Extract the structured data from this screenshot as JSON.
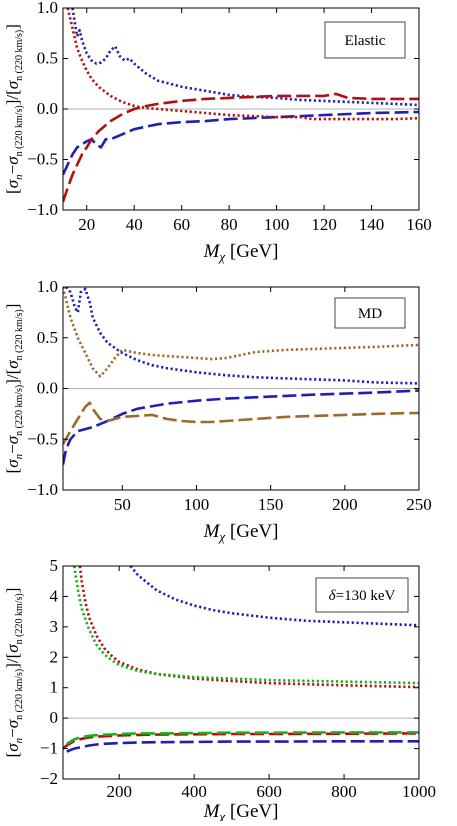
{
  "chart_data": [
    {
      "type": "line",
      "legend_label": "Elastic",
      "legend_position": "top-right",
      "xlabel": "M_χ [GeV]",
      "ylabel": "[σn−σn(220 km/s)]/[σn(220 km/s)]",
      "xlim": [
        10,
        160
      ],
      "ylim": [
        -1.0,
        1.0
      ],
      "xticks": [
        20,
        40,
        60,
        80,
        100,
        120,
        140,
        160
      ],
      "yticks": [
        -1.0,
        -0.5,
        0.0,
        0.5,
        1.0
      ],
      "ytick_labels": [
        "−1.0",
        "−0.5",
        "0.0",
        "0.5",
        "1.0"
      ],
      "zero_line": true,
      "series": [
        {
          "color": "#1f1fb4",
          "style": "dotted",
          "x": [
            14,
            15,
            16,
            17,
            18,
            20,
            22,
            24,
            26,
            28,
            30,
            32,
            34,
            36,
            38,
            40,
            45,
            50,
            60,
            70,
            80,
            90,
            100,
            110,
            120,
            130,
            140,
            150,
            160
          ],
          "y": [
            1.0,
            0.85,
            0.72,
            0.78,
            0.68,
            0.55,
            0.48,
            0.45,
            0.46,
            0.5,
            0.58,
            0.62,
            0.52,
            0.48,
            0.5,
            0.45,
            0.35,
            0.28,
            0.22,
            0.18,
            0.14,
            0.12,
            0.11,
            0.09,
            0.08,
            0.07,
            0.06,
            0.05,
            0.04
          ]
        },
        {
          "color": "#1f1fb4",
          "style": "dashed",
          "x": [
            10,
            12,
            14,
            16,
            18,
            20,
            22,
            24,
            26,
            28,
            30,
            35,
            40,
            50,
            60,
            70,
            80,
            100,
            120,
            140,
            160
          ],
          "y": [
            -0.65,
            -0.55,
            -0.45,
            -0.38,
            -0.35,
            -0.32,
            -0.3,
            -0.35,
            -0.38,
            -0.3,
            -0.3,
            -0.25,
            -0.2,
            -0.15,
            -0.13,
            -0.12,
            -0.1,
            -0.08,
            -0.06,
            -0.04,
            -0.03
          ]
        },
        {
          "color": "#b01010",
          "style": "dotted",
          "x": [
            12,
            14,
            16,
            18,
            20,
            22,
            25,
            30,
            35,
            40,
            45,
            50,
            60,
            70,
            80,
            90,
            100,
            110,
            115,
            120,
            130,
            140,
            150,
            160
          ],
          "y": [
            1.0,
            0.8,
            0.6,
            0.48,
            0.38,
            0.3,
            0.22,
            0.13,
            0.07,
            0.03,
            0.01,
            0.0,
            -0.02,
            -0.04,
            -0.06,
            -0.07,
            -0.08,
            -0.08,
            -0.1,
            -0.1,
            -0.1,
            -0.1,
            -0.1,
            -0.09
          ]
        },
        {
          "color": "#b01010",
          "style": "dashed",
          "x": [
            10,
            12,
            14,
            16,
            18,
            20,
            22,
            25,
            30,
            35,
            40,
            45,
            50,
            60,
            70,
            80,
            90,
            100,
            110,
            120,
            125,
            130,
            140,
            150,
            160
          ],
          "y": [
            -0.92,
            -0.78,
            -0.65,
            -0.55,
            -0.45,
            -0.38,
            -0.3,
            -0.22,
            -0.12,
            -0.05,
            0.0,
            0.03,
            0.05,
            0.08,
            0.1,
            0.11,
            0.12,
            0.13,
            0.13,
            0.13,
            0.15,
            0.11,
            0.1,
            0.1,
            0.1
          ]
        }
      ]
    },
    {
      "type": "line",
      "legend_label": "MD",
      "legend_position": "top-right",
      "xlabel": "M_χ [GeV]",
      "ylabel": "[σn−σn(220 km/s)]/[σn(220 km/s)]",
      "xlim": [
        10,
        250
      ],
      "ylim": [
        -1.0,
        1.0
      ],
      "xticks": [
        50,
        100,
        150,
        200,
        250
      ],
      "yticks": [
        -1.0,
        -0.5,
        0.0,
        0.5,
        1.0
      ],
      "ytick_labels": [
        "−1.0",
        "−0.5",
        "0.0",
        "0.5",
        "1.0"
      ],
      "zero_line": true,
      "series": [
        {
          "color": "#1f1fb4",
          "style": "dotted",
          "x": [
            12,
            15,
            18,
            20,
            22,
            25,
            28,
            30,
            35,
            40,
            50,
            60,
            70,
            80,
            100,
            120,
            140,
            160,
            180,
            200,
            220,
            250
          ],
          "y": [
            1.0,
            0.95,
            0.8,
            0.75,
            0.95,
            0.98,
            0.85,
            0.7,
            0.55,
            0.45,
            0.35,
            0.28,
            0.23,
            0.2,
            0.16,
            0.13,
            0.11,
            0.1,
            0.09,
            0.08,
            0.06,
            0.05
          ]
        },
        {
          "color": "#1f1fb4",
          "style": "dashed",
          "x": [
            10,
            12,
            15,
            18,
            20,
            25,
            30,
            40,
            50,
            60,
            80,
            100,
            120,
            150,
            180,
            200,
            220,
            250
          ],
          "y": [
            -0.75,
            -0.6,
            -0.5,
            -0.45,
            -0.42,
            -0.4,
            -0.38,
            -0.32,
            -0.25,
            -0.2,
            -0.15,
            -0.12,
            -0.1,
            -0.08,
            -0.06,
            -0.05,
            -0.04,
            -0.02
          ]
        },
        {
          "color": "#9c6a2e",
          "style": "dotted",
          "x": [
            10,
            15,
            20,
            25,
            30,
            35,
            40,
            45,
            50,
            60,
            70,
            80,
            90,
            100,
            110,
            120,
            130,
            140,
            160,
            180,
            200,
            220,
            250
          ],
          "y": [
            1.0,
            0.7,
            0.5,
            0.35,
            0.2,
            0.12,
            0.2,
            0.3,
            0.38,
            0.35,
            0.33,
            0.32,
            0.31,
            0.3,
            0.29,
            0.3,
            0.33,
            0.36,
            0.38,
            0.39,
            0.4,
            0.41,
            0.43
          ]
        },
        {
          "color": "#9c6a2e",
          "style": "dashed",
          "x": [
            10,
            15,
            20,
            25,
            28,
            30,
            35,
            40,
            50,
            60,
            70,
            80,
            90,
            100,
            110,
            120,
            140,
            160,
            180,
            200,
            220,
            250
          ],
          "y": [
            -0.55,
            -0.42,
            -0.3,
            -0.18,
            -0.14,
            -0.2,
            -0.3,
            -0.32,
            -0.28,
            -0.27,
            -0.26,
            -0.3,
            -0.32,
            -0.33,
            -0.33,
            -0.32,
            -0.3,
            -0.28,
            -0.27,
            -0.26,
            -0.25,
            -0.24
          ]
        }
      ]
    },
    {
      "type": "line",
      "legend_label": "δ=130 keV",
      "legend_position": "top-right",
      "xlabel": "M_χ [GeV]",
      "ylabel": "[σn−σn(220 km/s)]/[σn(220 km/s)]",
      "xlim": [
        50,
        1000
      ],
      "ylim": [
        -2,
        5
      ],
      "xticks": [
        200,
        400,
        600,
        800,
        1000
      ],
      "yticks": [
        -2,
        -1,
        0,
        1,
        2,
        3,
        4,
        5
      ],
      "ytick_labels": [
        "−2",
        "−1",
        "0",
        "1",
        "2",
        "3",
        "4",
        "5"
      ],
      "zero_line": true,
      "series": [
        {
          "color": "#1f1fb4",
          "style": "dotted",
          "x": [
            230,
            250,
            280,
            300,
            350,
            400,
            450,
            500,
            600,
            700,
            800,
            900,
            1000
          ],
          "y": [
            5.0,
            4.7,
            4.4,
            4.2,
            3.9,
            3.7,
            3.55,
            3.45,
            3.3,
            3.2,
            3.15,
            3.1,
            3.05
          ]
        },
        {
          "color": "#1f1fb4",
          "style": "dashed",
          "x": [
            60,
            80,
            100,
            120,
            150,
            200,
            250,
            300,
            400,
            500,
            600,
            800,
            1000
          ],
          "y": [
            -1.1,
            -1.0,
            -0.95,
            -0.9,
            -0.85,
            -0.82,
            -0.8,
            -0.79,
            -0.78,
            -0.77,
            -0.77,
            -0.76,
            -0.76
          ]
        },
        {
          "color": "#b01010",
          "style": "dotted",
          "x": [
            95,
            100,
            110,
            120,
            140,
            160,
            180,
            200,
            250,
            300,
            400,
            500,
            600,
            800,
            1000
          ],
          "y": [
            5.0,
            4.5,
            3.8,
            3.3,
            2.7,
            2.3,
            2.05,
            1.85,
            1.6,
            1.45,
            1.3,
            1.22,
            1.15,
            1.08,
            1.02
          ]
        },
        {
          "color": "#18b018",
          "style": "dotted",
          "x": [
            80,
            90,
            100,
            120,
            140,
            160,
            180,
            200,
            250,
            300,
            400,
            500,
            600,
            800,
            1000
          ],
          "y": [
            5.0,
            4.2,
            3.6,
            2.9,
            2.4,
            2.1,
            1.9,
            1.75,
            1.55,
            1.45,
            1.35,
            1.3,
            1.25,
            1.2,
            1.15
          ]
        },
        {
          "color": "#b01010",
          "style": "dashed",
          "x": [
            50,
            60,
            80,
            100,
            120,
            150,
            200,
            250,
            300,
            400,
            500,
            600,
            800,
            1000
          ],
          "y": [
            -1.0,
            -0.9,
            -0.75,
            -0.68,
            -0.63,
            -0.6,
            -0.57,
            -0.55,
            -0.54,
            -0.53,
            -0.52,
            -0.52,
            -0.51,
            -0.5
          ]
        },
        {
          "color": "#18b018",
          "style": "dashed",
          "x": [
            60,
            80,
            100,
            120,
            150,
            200,
            250,
            300,
            400,
            500,
            600,
            800,
            1000
          ],
          "y": [
            -0.85,
            -0.7,
            -0.62,
            -0.58,
            -0.55,
            -0.52,
            -0.5,
            -0.5,
            -0.49,
            -0.48,
            -0.48,
            -0.47,
            -0.47
          ]
        }
      ]
    }
  ]
}
